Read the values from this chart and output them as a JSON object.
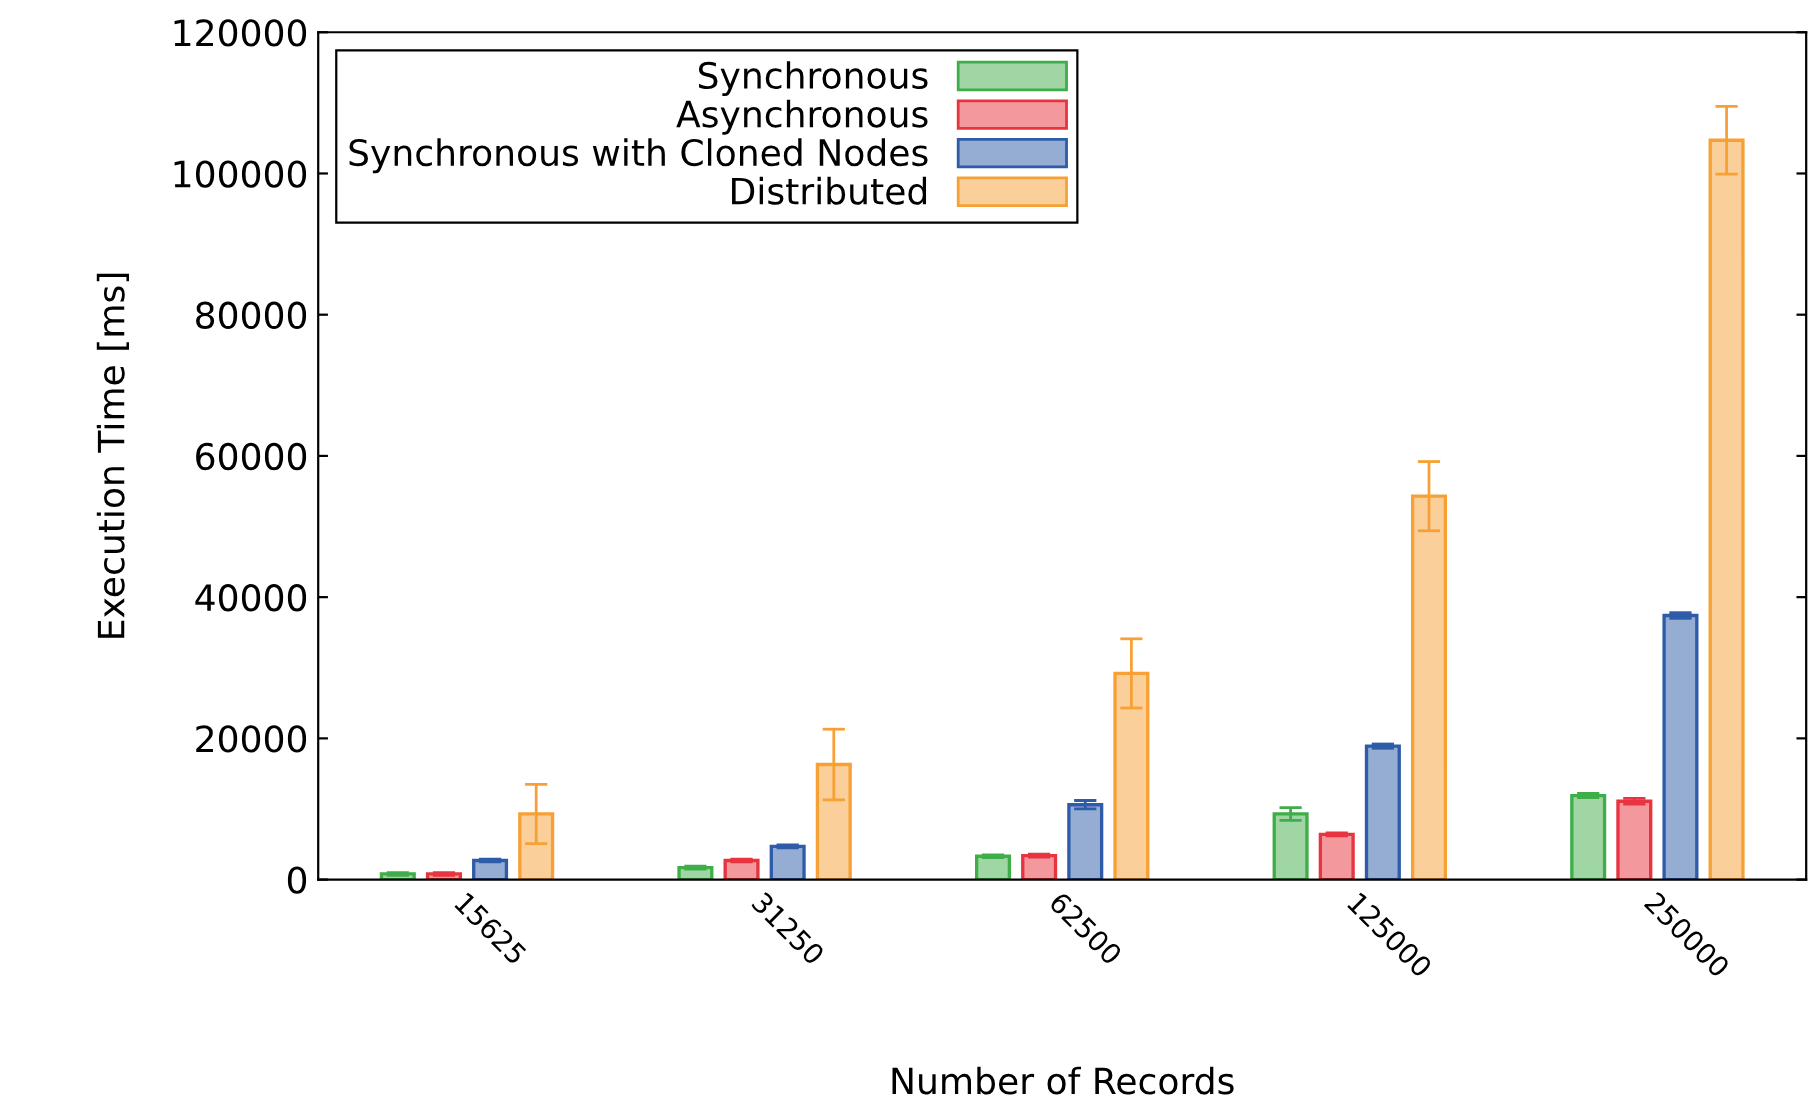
{
  "chart_data": {
    "type": "bar",
    "xlabel": "Number of Records",
    "ylabel": "Execution Time [ms]",
    "categories": [
      "15625",
      "31250",
      "62500",
      "125000",
      "250000"
    ],
    "series": [
      {
        "name": "Synchronous",
        "color": "#3fae4a",
        "values": [
          800,
          1700,
          3300,
          9300,
          11900
        ],
        "errors": [
          200,
          200,
          200,
          900,
          300
        ]
      },
      {
        "name": "Asynchronous",
        "color": "#e8343e",
        "values": [
          800,
          2700,
          3400,
          6400,
          11100
        ],
        "errors": [
          200,
          200,
          200,
          200,
          400
        ]
      },
      {
        "name": "Synchronous with Cloned Nodes",
        "color": "#2e5ca8",
        "values": [
          2700,
          4700,
          10600,
          18900,
          37400
        ],
        "errors": [
          200,
          200,
          600,
          300,
          400
        ]
      },
      {
        "name": "Distributed",
        "color": "#f7a035",
        "values": [
          9300,
          16300,
          29200,
          54300,
          104700
        ],
        "errors": [
          4200,
          5000,
          4900,
          4900,
          4800
        ]
      }
    ],
    "ylim": [
      0,
      120000
    ],
    "yticks": [
      0,
      20000,
      40000,
      60000,
      80000,
      100000,
      120000
    ],
    "grid": false,
    "legend": "top left"
  }
}
